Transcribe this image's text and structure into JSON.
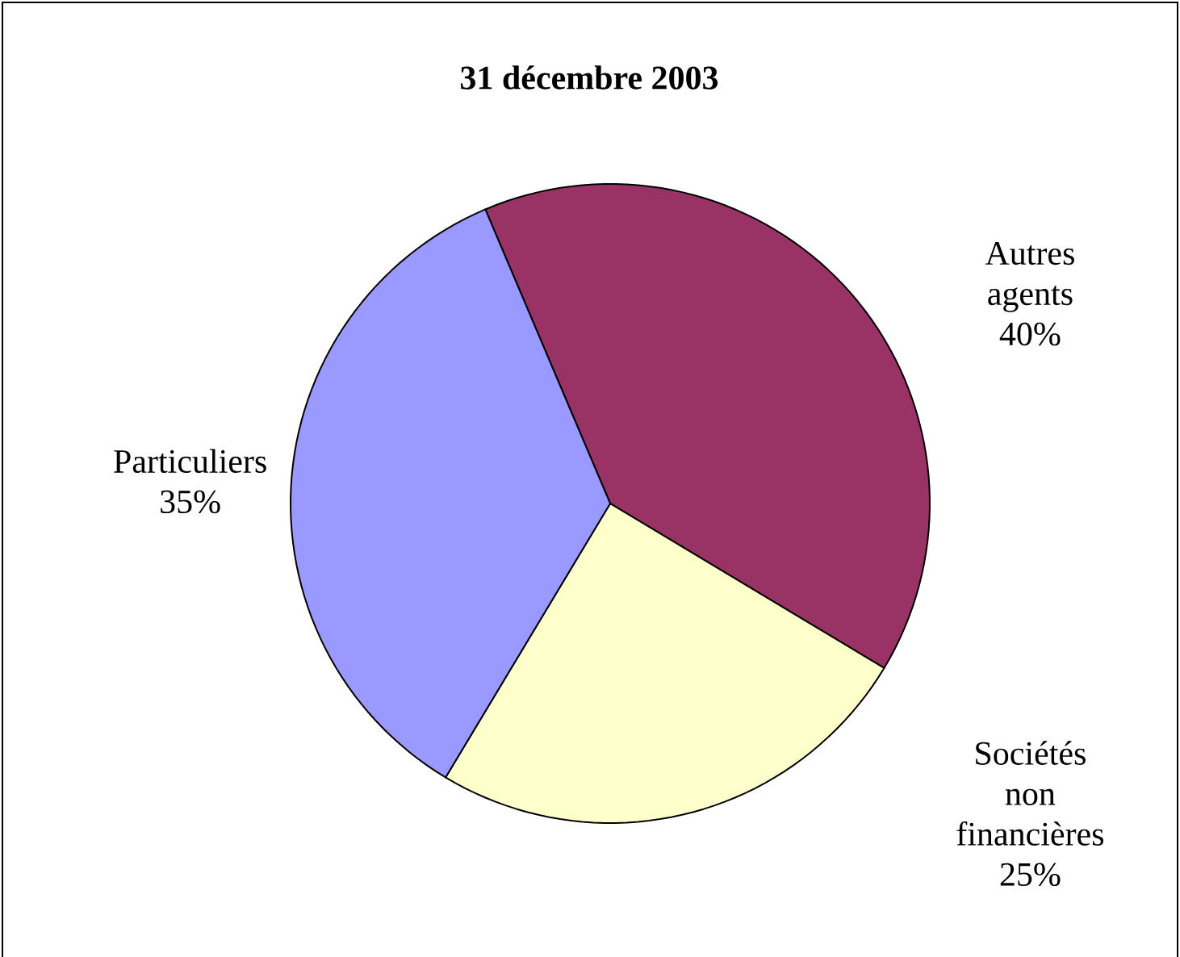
{
  "chart_data": {
    "type": "pie",
    "title": "31 décembre 2003",
    "categories": [
      "Autres agents",
      "Sociétés non financières",
      "Particuliers"
    ],
    "values": [
      40,
      25,
      35
    ],
    "value_labels": [
      "40%",
      "25%",
      "35%"
    ],
    "colors": [
      "#993366",
      "#ffffcc",
      "#9999ff"
    ]
  }
}
